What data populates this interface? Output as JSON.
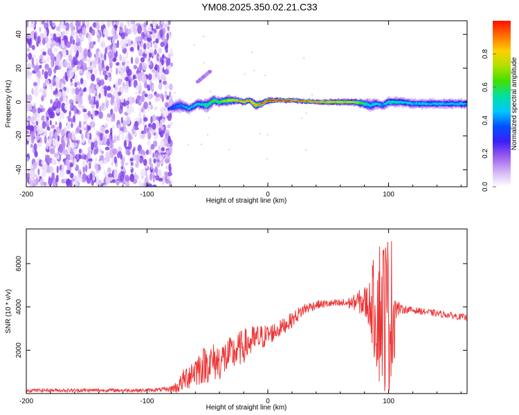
{
  "title": "YM08.2025.350.02.21.C33",
  "chart_data": [
    {
      "type": "heatmap",
      "name": "spectrogram",
      "xlabel": "Height of straight line (km)",
      "ylabel": "Frequency (Hz)",
      "xlim": [
        -200,
        165
      ],
      "ylim": [
        -50,
        48
      ],
      "xticks": [
        -200,
        -100,
        0,
        100
      ],
      "yticks": [
        -40,
        -20,
        0,
        20,
        40
      ],
      "noise_region_x": [
        -200,
        -82
      ],
      "noise_region_y": [
        -50,
        48
      ],
      "ridge": {
        "x": [
          -82,
          -78,
          -72,
          -65,
          -58,
          -50,
          -45,
          -40,
          -32,
          -25,
          -20,
          -15,
          -10,
          -5,
          0,
          10,
          20,
          40,
          60,
          70,
          80,
          85,
          90,
          95,
          100,
          110,
          120,
          140,
          165
        ],
        "y": [
          -4,
          -3,
          -2,
          -4,
          -1,
          -2,
          1,
          0,
          1,
          1,
          0,
          1,
          -2,
          -1,
          1,
          1,
          1,
          0,
          0,
          0,
          -1,
          -2,
          -1,
          -2,
          0,
          0,
          -1,
          -1,
          -1
        ],
        "half_width": [
          2,
          4,
          4,
          3,
          3,
          4,
          3,
          3,
          3,
          2,
          2,
          2,
          3,
          2,
          2,
          1.5,
          1.5,
          1.5,
          2,
          2,
          3,
          4,
          3,
          3,
          3,
          3,
          3,
          3,
          3
        ],
        "peak_amplitude": [
          0.35,
          0.4,
          0.45,
          0.5,
          0.55,
          0.6,
          0.65,
          0.7,
          0.8,
          0.85,
          0.9,
          0.9,
          0.85,
          0.95,
          1.0,
          1.0,
          0.95,
          0.9,
          0.85,
          0.85,
          0.65,
          0.5,
          0.55,
          0.45,
          0.6,
          0.55,
          0.5,
          0.5,
          0.5
        ]
      },
      "side_branch": {
        "x": [
          -58,
          -48
        ],
        "y": [
          12,
          18
        ]
      },
      "colorbar": {
        "label": "Normalized spectral amplitude",
        "range": [
          0.0,
          1.0
        ],
        "ticks": [
          0.0,
          0.2,
          0.4,
          0.6,
          0.8
        ],
        "tick_labels": [
          "0.0",
          "0.2",
          "0.4",
          "0.6",
          "0.8"
        ],
        "stops": [
          "#ffffff",
          "#d2b4f5",
          "#9b5cf0",
          "#3b1ff5",
          "#0050ff",
          "#00c8ff",
          "#00e0a0",
          "#40e000",
          "#b0e000",
          "#ffd000",
          "#ff7000",
          "#ff1000"
        ]
      }
    },
    {
      "type": "line",
      "name": "snr",
      "xlabel": "Height of straight line (km)",
      "ylabel": "SNR (10 * v/v)",
      "xlim": [
        -200,
        165
      ],
      "ylim": [
        0,
        7600
      ],
      "xticks": [
        -200,
        -100,
        0,
        100
      ],
      "yticks": [
        2000,
        4000,
        6000
      ],
      "color": "#ee3333",
      "series": [
        {
          "name": "SNR",
          "envelope_x": [
            -200,
            -150,
            -100,
            -82,
            -75,
            -70,
            -65,
            -60,
            -50,
            -40,
            -30,
            -20,
            -10,
            0,
            10,
            20,
            30,
            40,
            50,
            60,
            70,
            75,
            80,
            85,
            88,
            92,
            96,
            100,
            104,
            106,
            110,
            120,
            140,
            165
          ],
          "envelope_y": [
            150,
            150,
            150,
            200,
            300,
            600,
            900,
            1100,
            1400,
            1500,
            1800,
            2200,
            2500,
            2700,
            3000,
            3400,
            3900,
            4100,
            4150,
            4150,
            4200,
            4250,
            4200,
            4100,
            4000,
            3900,
            3800,
            3700,
            3800,
            3950,
            3900,
            3850,
            3700,
            3500
          ],
          "noise_amplitude": [
            80,
            80,
            80,
            100,
            300,
            500,
            700,
            800,
            900,
            900,
            850,
            800,
            700,
            500,
            400,
            350,
            300,
            200,
            180,
            200,
            300,
            500,
            800,
            1200,
            2500,
            3500,
            3800,
            3800,
            3500,
            600,
            200,
            150,
            150,
            150
          ]
        }
      ]
    }
  ]
}
